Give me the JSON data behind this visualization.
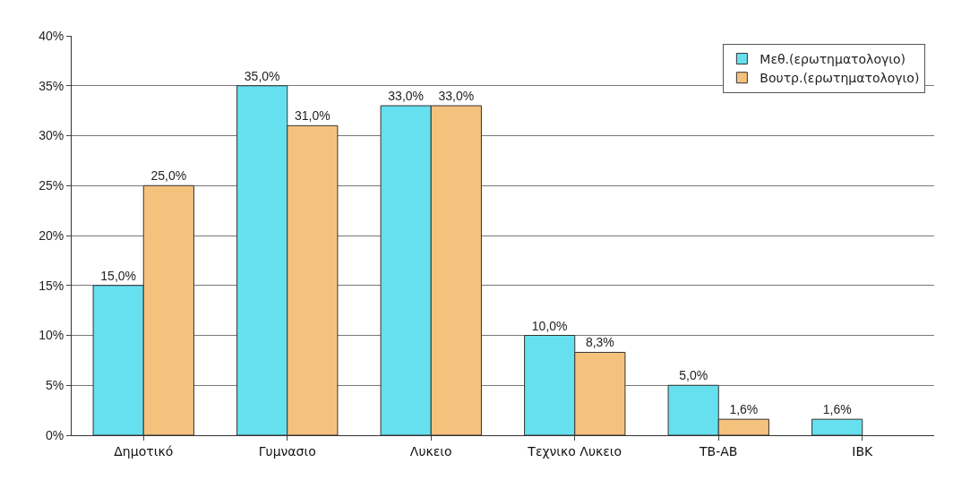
{
  "chart_data": {
    "type": "bar",
    "categories": [
      "Δημοτικό",
      "Γυμνασιο",
      "Λυκειο",
      "Τεχνικο Λυκειο",
      "ΤΒ-ΑΒ",
      "ΙΒΚ"
    ],
    "series": [
      {
        "name": "Μεθ.(ερωτηματολογιο)",
        "color": "#66e0ee",
        "values": [
          15,
          35,
          33,
          10,
          5,
          1.6
        ],
        "value_labels": [
          "15,0%",
          "35,0%",
          "33,0%",
          "10,0%",
          "5,0%",
          "1,6%"
        ]
      },
      {
        "name": "Βουτρ.(ερωτηματολογιο)",
        "color": "#f5c27e",
        "values": [
          25,
          31,
          33,
          8.3,
          1.6,
          null
        ],
        "value_labels": [
          "25,0%",
          "31,0%",
          "33,0%",
          "8,3%",
          "1,6%",
          null
        ]
      }
    ],
    "ylim": [
      0,
      40
    ],
    "yticks": [
      {
        "value": 0,
        "label": "0%"
      },
      {
        "value": 5,
        "label": "5%"
      },
      {
        "value": 10,
        "label": "10%"
      },
      {
        "value": 15,
        "label": "15%"
      },
      {
        "value": 20,
        "label": "20%"
      },
      {
        "value": 25,
        "label": "25%"
      },
      {
        "value": 30,
        "label": "30%"
      },
      {
        "value": 35,
        "label": "35%"
      },
      {
        "value": 40,
        "label": "40%"
      }
    ],
    "grid": "y",
    "legend": "top right"
  }
}
